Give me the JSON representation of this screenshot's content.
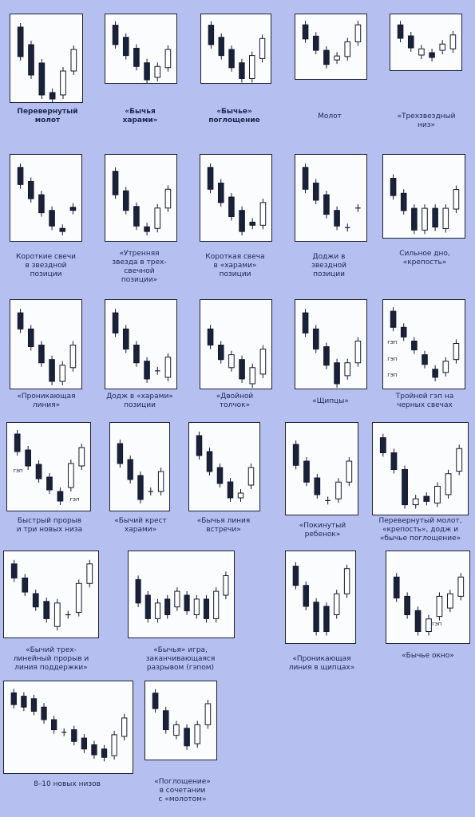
{
  "background": "#b5bff0",
  "gap_label": "гэп",
  "patterns": [
    {
      "id": "inverted-hammer",
      "label": "Перевернутый\nмолот",
      "bold": true,
      "candles": [
        [
          "b",
          0.1,
          0.47
        ],
        [
          "b",
          0.32,
          0.7
        ],
        [
          "b",
          0.55,
          0.95
        ],
        [
          "b",
          0.92,
          1.0
        ],
        [
          "w",
          0.65,
          0.95
        ],
        [
          "w",
          0.38,
          0.65
        ]
      ]
    },
    {
      "id": "bullish-harami",
      "label": "«Бычья\nхарами»",
      "bold": true,
      "candles": [
        [
          "b",
          0.1,
          0.42
        ],
        [
          "b",
          0.3,
          0.6
        ],
        [
          "b",
          0.48,
          0.78
        ],
        [
          "b",
          0.72,
          1.0
        ],
        [
          "w",
          0.78,
          0.96
        ],
        [
          "w",
          0.5,
          0.8
        ]
      ]
    },
    {
      "id": "bullish-engulfing",
      "label": "«Бычье»\nпоглощение",
      "bold": true,
      "candles": [
        [
          "b",
          0.1,
          0.42
        ],
        [
          "b",
          0.3,
          0.6
        ],
        [
          "b",
          0.5,
          0.8
        ],
        [
          "b",
          0.72,
          0.98
        ],
        [
          "w",
          0.6,
          0.98
        ],
        [
          "w",
          0.32,
          0.65
        ]
      ]
    },
    {
      "id": "hammer",
      "label": "Молот",
      "candles": [
        [
          "b",
          0.1,
          0.35
        ],
        [
          "b",
          0.3,
          0.55
        ],
        [
          "b",
          0.55,
          0.8
        ],
        [
          "w",
          0.65,
          0.72
        ],
        [
          "w",
          0.4,
          0.66
        ],
        [
          "w",
          0.1,
          0.4
        ]
      ]
    },
    {
      "id": "three-star-bottom",
      "label": "«Трехзвездный\nниз»",
      "candles": [
        [
          "b",
          0.12,
          0.4
        ],
        [
          "b",
          0.35,
          0.6
        ],
        [
          "w",
          0.62,
          0.75
        ],
        [
          "b",
          0.7,
          0.8
        ],
        [
          "w",
          0.52,
          0.65
        ],
        [
          "w",
          0.33,
          0.62
        ]
      ]
    },
    {
      "id": "short-candles-star",
      "label": "Короткие свечи\nв звездной\nпозиции",
      "candles": [
        [
          "b",
          0.1,
          0.32
        ],
        [
          "b",
          0.28,
          0.5
        ],
        [
          "b",
          0.45,
          0.68
        ],
        [
          "b",
          0.65,
          0.85
        ],
        [
          "b",
          0.88,
          0.92
        ],
        [
          "b",
          0.61,
          0.65
        ]
      ]
    },
    {
      "id": "morning-star-3",
      "label": "«Утренняя\nзвезда в трех-\nсвечной\nпозиции»",
      "candles": [
        [
          "b",
          0.15,
          0.45
        ],
        [
          "b",
          0.4,
          0.65
        ],
        [
          "b",
          0.6,
          0.85
        ],
        [
          "b",
          0.86,
          0.92
        ],
        [
          "w",
          0.62,
          0.88
        ],
        [
          "w",
          0.38,
          0.62
        ]
      ]
    },
    {
      "id": "short-candle-harami",
      "label": "Короткая свеча\nв «харами»\nпозиции",
      "candles": [
        [
          "b",
          0.1,
          0.38
        ],
        [
          "b",
          0.3,
          0.55
        ],
        [
          "b",
          0.48,
          0.73
        ],
        [
          "b",
          0.65,
          0.92
        ],
        [
          "b",
          0.8,
          0.84
        ],
        [
          "w",
          0.55,
          0.84
        ]
      ]
    },
    {
      "id": "doji-star",
      "label": "Доджи в\nзвездной\nпозиции",
      "candles": [
        [
          "b",
          0.1,
          0.38
        ],
        [
          "b",
          0.3,
          0.52
        ],
        [
          "b",
          0.45,
          0.7
        ],
        [
          "b",
          0.65,
          0.85
        ],
        [
          "d",
          0.87,
          0.87
        ],
        [
          "d",
          0.62,
          0.62
        ]
      ]
    },
    {
      "id": "strong-bottom",
      "label": "Сильное дно,\n«крепость»",
      "candles": [
        [
          "b",
          0.25,
          0.48
        ],
        [
          "b",
          0.45,
          0.68
        ],
        [
          "b",
          0.65,
          0.94
        ],
        [
          "w",
          0.65,
          0.94
        ],
        [
          "b",
          0.65,
          0.9
        ],
        [
          "w",
          0.65,
          0.92
        ],
        [
          "w",
          0.4,
          0.66
        ]
      ]
    },
    {
      "id": "piercing-line",
      "label": "«Проникающая\nлиния»",
      "candles": [
        [
          "b",
          0.1,
          0.3
        ],
        [
          "b",
          0.3,
          0.52
        ],
        [
          "b",
          0.5,
          0.72
        ],
        [
          "b",
          0.68,
          0.95
        ],
        [
          "w",
          0.75,
          0.95
        ],
        [
          "w",
          0.5,
          0.78
        ]
      ]
    },
    {
      "id": "doji-harami",
      "label": "Додж в «харами»\nпозиции",
      "candles": [
        [
          "b",
          0.1,
          0.35
        ],
        [
          "b",
          0.3,
          0.55
        ],
        [
          "b",
          0.5,
          0.72
        ],
        [
          "b",
          0.7,
          0.92
        ],
        [
          "d",
          0.82,
          0.82
        ],
        [
          "w",
          0.65,
          0.9
        ]
      ]
    },
    {
      "id": "double-push",
      "label": "«Двойной\nтолчок»",
      "candles": [
        [
          "b",
          0.3,
          0.5
        ],
        [
          "b",
          0.5,
          0.68
        ],
        [
          "w",
          0.62,
          0.78
        ],
        [
          "b",
          0.68,
          0.92
        ],
        [
          "w",
          0.78,
          0.98
        ],
        [
          "w",
          0.55,
          0.86
        ]
      ]
    },
    {
      "id": "tweezers",
      "label": "«Щипцы»",
      "candles": [
        [
          "b",
          0.1,
          0.35
        ],
        [
          "b",
          0.3,
          0.55
        ],
        [
          "b",
          0.52,
          0.75
        ],
        [
          "b",
          0.72,
          0.98
        ],
        [
          "w",
          0.72,
          0.88
        ],
        [
          "w",
          0.45,
          0.72
        ]
      ]
    },
    {
      "id": "triple-gap-black",
      "label": "Тройной гэп на\nчерных свечах",
      "gaps": [
        [
          0.05,
          0.43
        ],
        [
          0.05,
          0.62
        ],
        [
          0.05,
          0.8
        ]
      ],
      "candles": [
        [
          "b",
          0.08,
          0.28
        ],
        [
          "b",
          0.28,
          0.4
        ],
        [
          "b",
          0.45,
          0.56
        ],
        [
          "b",
          0.62,
          0.74
        ],
        [
          "b",
          0.8,
          0.9
        ],
        [
          "w",
          0.7,
          0.84
        ],
        [
          "w",
          0.48,
          0.68
        ]
      ]
    },
    {
      "id": "fast-breakout",
      "label": "Быстрый прорыв\nи три новых низа",
      "gaps": [
        [
          0.07,
          0.5
        ],
        [
          0.74,
          0.82
        ]
      ],
      "candles": [
        [
          "b",
          0.08,
          0.3
        ],
        [
          "b",
          0.28,
          0.48
        ],
        [
          "b",
          0.46,
          0.64
        ],
        [
          "b",
          0.62,
          0.78
        ],
        [
          "b",
          0.8,
          0.92
        ],
        [
          "w",
          0.45,
          0.75
        ],
        [
          "w",
          0.25,
          0.48
        ]
      ]
    },
    {
      "id": "bullish-doji-cross",
      "label": "«Бычий крест\nхарами»",
      "candles": [
        [
          "b",
          0.2,
          0.45
        ],
        [
          "b",
          0.4,
          0.65
        ],
        [
          "b",
          0.6,
          0.9
        ],
        [
          "d",
          0.8,
          0.8
        ],
        [
          "w",
          0.55,
          0.8
        ]
      ]
    },
    {
      "id": "bullish-meeting",
      "label": "«Бычья линия\nвстречи»",
      "candles": [
        [
          "b",
          0.1,
          0.35
        ],
        [
          "b",
          0.3,
          0.55
        ],
        [
          "b",
          0.5,
          0.7
        ],
        [
          "b",
          0.68,
          0.88
        ],
        [
          "w",
          0.82,
          0.88
        ],
        [
          "w",
          0.5,
          0.72
        ]
      ]
    },
    {
      "id": "abandoned-baby",
      "label": "«Покинутый\nребенок»",
      "candles": [
        [
          "b",
          0.2,
          0.45
        ],
        [
          "b",
          0.4,
          0.65
        ],
        [
          "b",
          0.6,
          0.8
        ],
        [
          "d",
          0.87,
          0.87
        ],
        [
          "w",
          0.65,
          0.85
        ],
        [
          "w",
          0.4,
          0.65
        ]
      ]
    },
    {
      "id": "inverted-hammer-fortress",
      "label": "Перевернутый молот,\n«крепость», додж и\n«бычье поглощение»",
      "candles": [
        [
          "b",
          0.12,
          0.3
        ],
        [
          "b",
          0.3,
          0.5
        ],
        [
          "b",
          0.5,
          0.92
        ],
        [
          "w",
          0.85,
          0.92
        ],
        [
          "b",
          0.82,
          0.88
        ],
        [
          "w",
          0.7,
          0.9
        ],
        [
          "w",
          0.55,
          0.8
        ],
        [
          "w",
          0.25,
          0.52
        ]
      ]
    },
    {
      "id": "three-line-breakout",
      "label": "«Бычий трех-\nлинейный прорыв и\nлиния поддержки»",
      "candles": [
        [
          "b",
          0.1,
          0.28
        ],
        [
          "b",
          0.28,
          0.46
        ],
        [
          "b",
          0.48,
          0.65
        ],
        [
          "b",
          0.58,
          0.8
        ],
        [
          "w",
          0.6,
          0.9
        ],
        [
          "d",
          0.75,
          0.75
        ],
        [
          "w",
          0.35,
          0.72
        ],
        [
          "w",
          0.1,
          0.35
        ]
      ]
    },
    {
      "id": "bullish-game-gap",
      "label": "«Бычья» игра,\nзаканчивающаяся\nразрывом (гэпом)",
      "candles": [
        [
          "b",
          0.3,
          0.6
        ],
        [
          "b",
          0.5,
          0.8
        ],
        [
          "w",
          0.6,
          0.8
        ],
        [
          "b",
          0.55,
          0.75
        ],
        [
          "w",
          0.45,
          0.65
        ],
        [
          "b",
          0.5,
          0.7
        ],
        [
          "w",
          0.55,
          0.75
        ],
        [
          "b",
          0.55,
          0.8
        ],
        [
          "w",
          0.45,
          0.8
        ],
        [
          "w",
          0.25,
          0.5
        ]
      ]
    },
    {
      "id": "piercing-tweezers",
      "label": "«Проникающая\nлиния в щипцах»",
      "candles": [
        [
          "b",
          0.12,
          0.35
        ],
        [
          "b",
          0.35,
          0.6
        ],
        [
          "b",
          0.55,
          0.9
        ],
        [
          "b",
          0.6,
          0.9
        ],
        [
          "w",
          0.45,
          0.7
        ],
        [
          "w",
          0.15,
          0.45
        ]
      ]
    },
    {
      "id": "bullish-window",
      "label": "«Бычье окно»",
      "gaps": [
        [
          0.54,
          0.74
        ]
      ],
      "candles": [
        [
          "b",
          0.25,
          0.5
        ],
        [
          "b",
          0.48,
          0.7
        ],
        [
          "b",
          0.65,
          0.9
        ],
        [
          "w",
          0.75,
          0.9
        ],
        [
          "w",
          0.48,
          0.72
        ],
        [
          "w",
          0.45,
          0.62
        ],
        [
          "w",
          0.25,
          0.48
        ]
      ]
    },
    {
      "id": "eight-ten-lows",
      "label": "8–10 новых низов",
      "candles": [
        [
          "b",
          0.08,
          0.22
        ],
        [
          "b",
          0.12,
          0.25
        ],
        [
          "b",
          0.15,
          0.3
        ],
        [
          "b",
          0.25,
          0.4
        ],
        [
          "b",
          0.4,
          0.52
        ],
        [
          "d",
          0.55,
          0.55
        ],
        [
          "b",
          0.52,
          0.66
        ],
        [
          "b",
          0.62,
          0.75
        ],
        [
          "b",
          0.7,
          0.82
        ],
        [
          "b",
          0.75,
          0.85
        ],
        [
          "w",
          0.58,
          0.83
        ],
        [
          "w",
          0.38,
          0.6
        ]
      ]
    },
    {
      "id": "engulfing-hammer",
      "label": "«Поглощение»\nв сочетании\nс «молотом»",
      "candles": [
        [
          "b",
          0.1,
          0.32
        ],
        [
          "b",
          0.35,
          0.62
        ],
        [
          "w",
          0.55,
          0.7
        ],
        [
          "b",
          0.6,
          0.85
        ],
        [
          "w",
          0.55,
          0.82
        ],
        [
          "w",
          0.25,
          0.55
        ]
      ]
    }
  ]
}
